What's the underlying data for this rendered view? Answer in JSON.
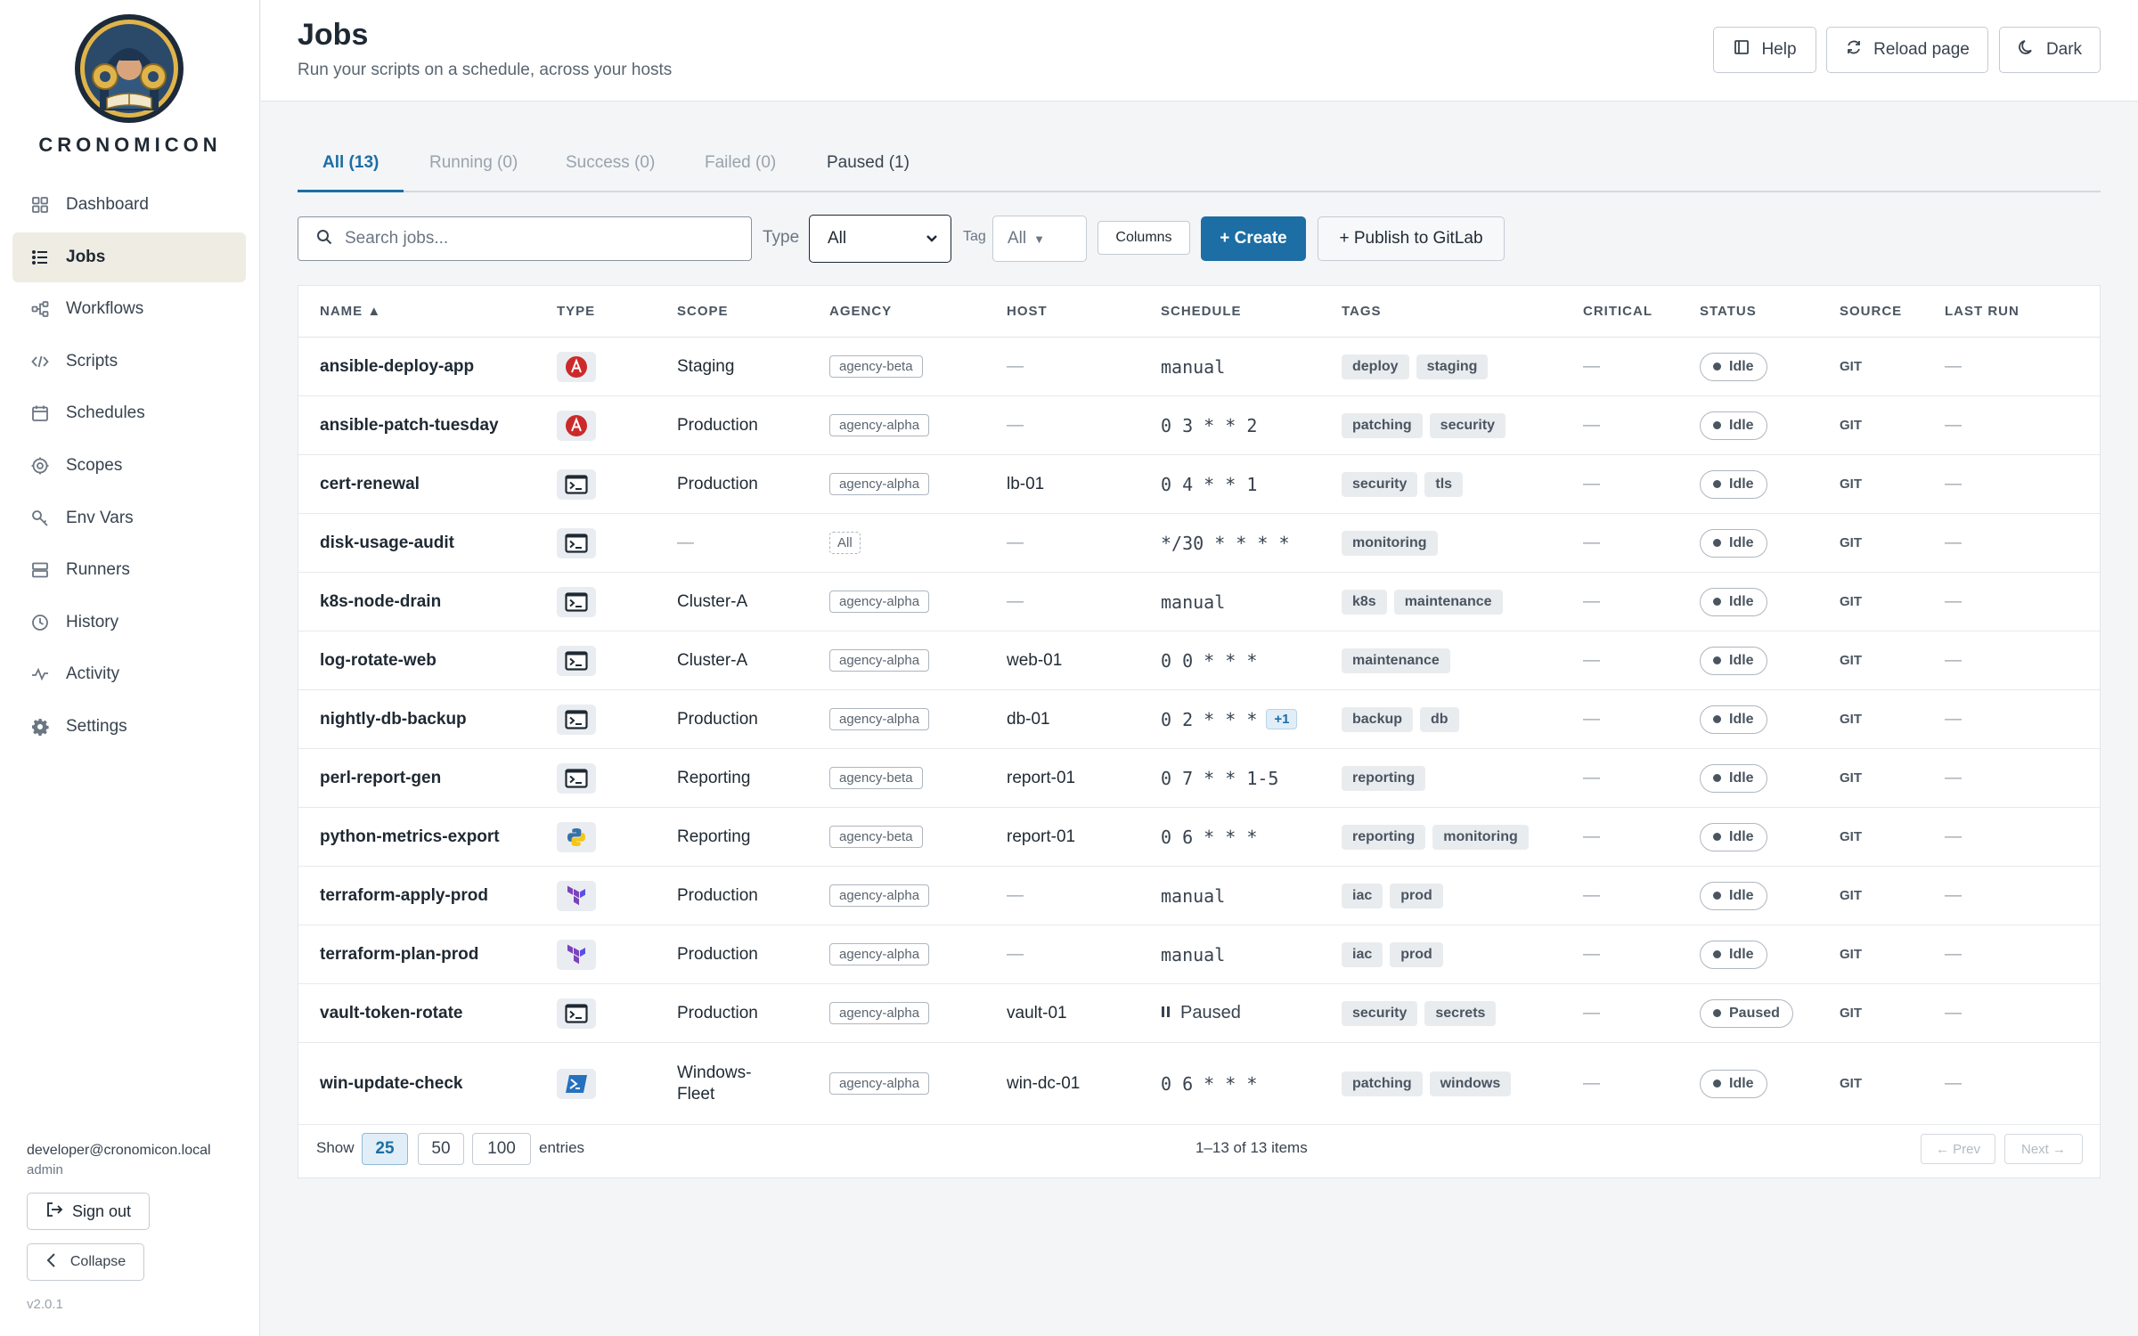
{
  "app": {
    "brand": "CRONOMICON",
    "version": "v2.0.1"
  },
  "sidebar": {
    "items": [
      {
        "label": "Dashboard",
        "icon": "grid-icon"
      },
      {
        "label": "Jobs",
        "icon": "list-icon",
        "active": true
      },
      {
        "label": "Workflows",
        "icon": "workflow-icon"
      },
      {
        "label": "Scripts",
        "icon": "code-icon"
      },
      {
        "label": "Schedules",
        "icon": "calendar-icon"
      },
      {
        "label": "Scopes",
        "icon": "target-icon"
      },
      {
        "label": "Env Vars",
        "icon": "key-icon"
      },
      {
        "label": "Runners",
        "icon": "server-icon"
      },
      {
        "label": "History",
        "icon": "clock-icon"
      },
      {
        "label": "Activity",
        "icon": "activity-icon"
      },
      {
        "label": "Settings",
        "icon": "gear-icon"
      }
    ],
    "user_email": "developer@cronomicon.local",
    "user_role": "admin",
    "signout_label": "Sign out",
    "collapse_label": "Collapse"
  },
  "header": {
    "title": "Jobs",
    "subtitle": "Run your scripts on a schedule, across your hosts",
    "help_label": "Help",
    "reload_label": "Reload page",
    "theme_label": "Dark"
  },
  "tabs": [
    "All (13)",
    "Running (0)",
    "Success (0)",
    "Failed (0)",
    "Paused (1)"
  ],
  "toolbar": {
    "search_placeholder": "Search jobs...",
    "type_label": "Type",
    "type_value": "All",
    "tag_label": "Tag",
    "tag_value": "All",
    "columns_label": "Columns",
    "create_label": "+ Create",
    "publish_label": "+ Publish to GitLab"
  },
  "table": {
    "headers": [
      "NAME ▲",
      "TYPE",
      "SCOPE",
      "AGENCY",
      "HOST",
      "SCHEDULE",
      "TAGS",
      "CRITICAL",
      "STATUS",
      "SOURCE",
      "LAST RUN"
    ],
    "rows": [
      {
        "name": "ansible-deploy-app",
        "type": "ansible",
        "scope": "Staging",
        "agency": "agency-beta",
        "host": "—",
        "schedule": "manual",
        "tags": [
          "deploy",
          "staging"
        ],
        "critical": "—",
        "status": "Idle",
        "source": "GIT",
        "last_run": "—"
      },
      {
        "name": "ansible-patch-tuesday",
        "type": "ansible",
        "scope": "Production",
        "agency": "agency-alpha",
        "host": "—",
        "schedule": "0 3 * * 2",
        "tags": [
          "patching",
          "security"
        ],
        "critical": "—",
        "status": "Idle",
        "source": "GIT",
        "last_run": "—"
      },
      {
        "name": "cert-renewal",
        "type": "shell",
        "scope": "Production",
        "agency": "agency-alpha",
        "host": "lb-01",
        "schedule": "0 4 * * 1",
        "tags": [
          "security",
          "tls"
        ],
        "critical": "—",
        "status": "Idle",
        "source": "GIT",
        "last_run": "—"
      },
      {
        "name": "disk-usage-audit",
        "type": "shell",
        "scope": "—",
        "agency": "All",
        "host": "—",
        "schedule": "*/30 * * * *",
        "tags": [
          "monitoring"
        ],
        "critical": "—",
        "status": "Idle",
        "source": "GIT",
        "last_run": "—"
      },
      {
        "name": "k8s-node-drain",
        "type": "shell",
        "scope": "Cluster-A",
        "agency": "agency-alpha",
        "host": "—",
        "schedule": "manual",
        "tags": [
          "k8s",
          "maintenance"
        ],
        "critical": "—",
        "status": "Idle",
        "source": "GIT",
        "last_run": "—"
      },
      {
        "name": "log-rotate-web",
        "type": "shell",
        "scope": "Cluster-A",
        "agency": "agency-alpha",
        "host": "web-01",
        "schedule": "0 0 * * *",
        "tags": [
          "maintenance"
        ],
        "critical": "—",
        "status": "Idle",
        "source": "GIT",
        "last_run": "—"
      },
      {
        "name": "nightly-db-backup",
        "type": "shell",
        "scope": "Production",
        "agency": "agency-alpha",
        "host": "db-01",
        "schedule": "0 2 * * *",
        "schedule_extra": "+1",
        "tags": [
          "backup",
          "db"
        ],
        "critical": "—",
        "status": "Idle",
        "source": "GIT",
        "last_run": "—"
      },
      {
        "name": "perl-report-gen",
        "type": "shell",
        "scope": "Reporting",
        "agency": "agency-beta",
        "host": "report-01",
        "schedule": "0 7 * * 1-5",
        "tags": [
          "reporting"
        ],
        "critical": "—",
        "status": "Idle",
        "source": "GIT",
        "last_run": "—"
      },
      {
        "name": "python-metrics-export",
        "type": "python",
        "scope": "Reporting",
        "agency": "agency-beta",
        "host": "report-01",
        "schedule": "0 6 * * *",
        "tags": [
          "reporting",
          "monitoring"
        ],
        "critical": "—",
        "status": "Idle",
        "source": "GIT",
        "last_run": "—"
      },
      {
        "name": "terraform-apply-prod",
        "type": "terraform",
        "scope": "Production",
        "agency": "agency-alpha",
        "host": "—",
        "schedule": "manual",
        "tags": [
          "iac",
          "prod"
        ],
        "critical": "—",
        "status": "Idle",
        "source": "GIT",
        "last_run": "—"
      },
      {
        "name": "terraform-plan-prod",
        "type": "terraform",
        "scope": "Production",
        "agency": "agency-alpha",
        "host": "—",
        "schedule": "manual",
        "tags": [
          "iac",
          "prod"
        ],
        "critical": "—",
        "status": "Idle",
        "source": "GIT",
        "last_run": "—"
      },
      {
        "name": "vault-token-rotate",
        "type": "shell",
        "scope": "Production",
        "agency": "agency-alpha",
        "host": "vault-01",
        "schedule": "Paused",
        "paused": true,
        "tags": [
          "security",
          "secrets"
        ],
        "critical": "—",
        "status": "Paused",
        "source": "GIT",
        "last_run": "—"
      },
      {
        "name": "win-update-check",
        "type": "powershell",
        "scope": "Windows-Fleet",
        "agency": "agency-alpha",
        "host": "win-dc-01",
        "schedule": "0 6 * * *",
        "tags": [
          "patching",
          "windows"
        ],
        "critical": "—",
        "status": "Idle",
        "source": "GIT",
        "last_run": "—"
      }
    ]
  },
  "pagination": {
    "show_label": "Show",
    "sizes": [
      "25",
      "50",
      "100"
    ],
    "entries_label": "entries",
    "summary": "1–13 of 13 items",
    "prev_label": "← Prev",
    "next_label": "Next →"
  },
  "colors": {
    "accent": "#1c6ea4",
    "active_nav_bg": "#efece3",
    "ansible": "#cc2a2a",
    "terraform": "#7b42bc",
    "powershell": "#2671be",
    "python_blue": "#3671a6",
    "python_yellow": "#f5c518"
  }
}
